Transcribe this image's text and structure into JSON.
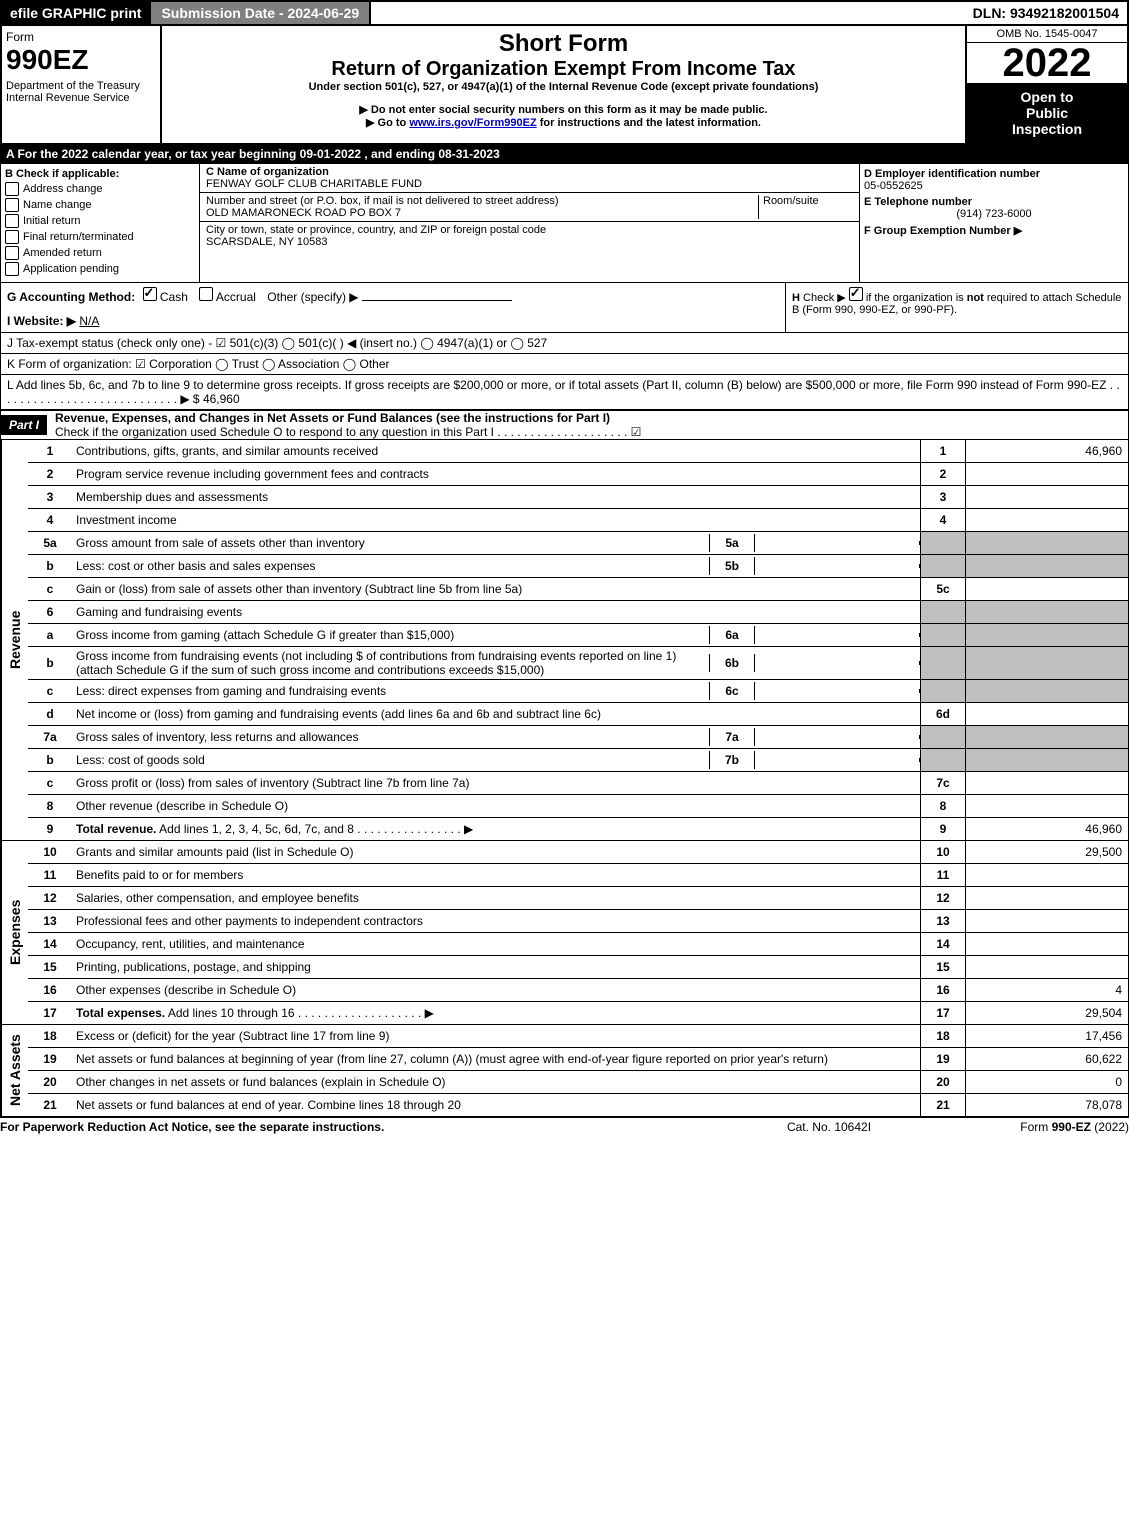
{
  "topbar": {
    "efile": "efile GRAPHIC print",
    "submission": "Submission Date - 2024-06-29",
    "dln": "DLN: 93492182001504"
  },
  "header": {
    "form_label": "Form",
    "form_num": "990EZ",
    "dept1": "Department of the Treasury",
    "dept2": "Internal Revenue Service",
    "short_form": "Short Form",
    "title": "Return of Organization Exempt From Income Tax",
    "subtitle": "Under section 501(c), 527, or 4947(a)(1) of the Internal Revenue Code (except private foundations)",
    "warn1": "▶ Do not enter social security numbers on this form as it may be made public.",
    "warn2_pre": "▶ Go to ",
    "warn2_link": "www.irs.gov/Form990EZ",
    "warn2_post": " for instructions and the latest information.",
    "omb": "OMB No. 1545-0047",
    "year": "2022",
    "open1": "Open to",
    "open2": "Public",
    "open3": "Inspection"
  },
  "sectionA": "A  For the 2022 calendar year, or tax year beginning 09-01-2022 , and ending 08-31-2023",
  "boxB": {
    "title": "B  Check if applicable:",
    "opts": [
      "Address change",
      "Name change",
      "Initial return",
      "Final return/terminated",
      "Amended return",
      "Application pending"
    ]
  },
  "boxC": {
    "c_label": "C Name of organization",
    "c_val": "FENWAY GOLF CLUB CHARITABLE FUND",
    "street_label": "Number and street (or P.O. box, if mail is not delivered to street address)",
    "room_label": "Room/suite",
    "street_val": "OLD MAMARONECK ROAD PO BOX 7",
    "city_label": "City or town, state or province, country, and ZIP or foreign postal code",
    "city_val": "SCARSDALE, NY  10583"
  },
  "boxD": {
    "d_label": "D Employer identification number",
    "d_val": "05-0552625",
    "e_label": "E Telephone number",
    "e_val": "(914) 723-6000",
    "f_label": "F Group Exemption Number  ▶"
  },
  "rowG": {
    "label": "G Accounting Method:",
    "cash": "Cash",
    "accrual": "Accrual",
    "other": "Other (specify) ▶"
  },
  "rowH": "H  Check ▶ ☐ if the organization is not required to attach Schedule B (Form 990, 990-EZ, or 990-PF).",
  "rowI": {
    "label": "I Website: ▶",
    "val": "N/A"
  },
  "rowJ": "J Tax-exempt status (check only one) - ☑ 501(c)(3)  ◯ 501(c)(  ) ◀ (insert no.)  ◯ 4947(a)(1) or  ◯ 527",
  "rowK": "K Form of organization:  ☑ Corporation  ◯ Trust  ◯ Association  ◯ Other",
  "rowL": {
    "text": "L Add lines 5b, 6c, and 7b to line 9 to determine gross receipts. If gross receipts are $200,000 or more, or if total assets (Part II, column (B) below) are $500,000 or more, file Form 990 instead of Form 990-EZ  .  .  .  .  .  .  .  .  .  .  .  .  .  .  .  .  .  .  .  .  .  .  .  .  .  .  .  .  ▶ $",
    "val": "46,960"
  },
  "part1": {
    "label": "Part I",
    "title": "Revenue, Expenses, and Changes in Net Assets or Fund Balances (see the instructions for Part I)",
    "check_line": "Check if the organization used Schedule O to respond to any question in this Part I  .  .  .  .  .  .  .  .  .  .  .  .  .  .  .  .  .  .  .  .  ☑"
  },
  "sections": {
    "revenue_label": "Revenue",
    "expenses_label": "Expenses",
    "netassets_label": "Net Assets"
  },
  "lines": [
    {
      "n": "1",
      "desc": "Contributions, gifts, grants, and similar amounts received",
      "rn": "1",
      "rv": "46,960"
    },
    {
      "n": "2",
      "desc": "Program service revenue including government fees and contracts",
      "rn": "2",
      "rv": ""
    },
    {
      "n": "3",
      "desc": "Membership dues and assessments",
      "rn": "3",
      "rv": ""
    },
    {
      "n": "4",
      "desc": "Investment income",
      "rn": "4",
      "rv": ""
    },
    {
      "n": "5a",
      "desc": "Gross amount from sale of assets other than inventory",
      "mn": "5a",
      "shaded": true
    },
    {
      "n": "b",
      "desc": "Less: cost or other basis and sales expenses",
      "mn": "5b",
      "shaded": true
    },
    {
      "n": "c",
      "desc": "Gain or (loss) from sale of assets other than inventory (Subtract line 5b from line 5a)",
      "rn": "5c",
      "rv": ""
    },
    {
      "n": "6",
      "desc": "Gaming and fundraising events",
      "shaded": true
    },
    {
      "n": "a",
      "desc": "Gross income from gaming (attach Schedule G if greater than $15,000)",
      "mn": "6a",
      "shaded": true
    },
    {
      "n": "b",
      "desc": "Gross income from fundraising events (not including $                    of contributions from fundraising events reported on line 1) (attach Schedule G if the sum of such gross income and contributions exceeds $15,000)",
      "mn": "6b",
      "shaded": true
    },
    {
      "n": "c",
      "desc": "Less: direct expenses from gaming and fundraising events",
      "mn": "6c",
      "shaded": true
    },
    {
      "n": "d",
      "desc": "Net income or (loss) from gaming and fundraising events (add lines 6a and 6b and subtract line 6c)",
      "rn": "6d",
      "rv": ""
    },
    {
      "n": "7a",
      "desc": "Gross sales of inventory, less returns and allowances",
      "mn": "7a",
      "shaded": true
    },
    {
      "n": "b",
      "desc": "Less: cost of goods sold",
      "mn": "7b",
      "shaded": true
    },
    {
      "n": "c",
      "desc": "Gross profit or (loss) from sales of inventory (Subtract line 7b from line 7a)",
      "rn": "7c",
      "rv": ""
    },
    {
      "n": "8",
      "desc": "Other revenue (describe in Schedule O)",
      "rn": "8",
      "rv": ""
    },
    {
      "n": "9",
      "desc": "Total revenue. Add lines 1, 2, 3, 4, 5c, 6d, 7c, and 8  .  .  .  .  .  .  .  .  .  .  .  .  .  .  .  .  ▶",
      "rn": "9",
      "rv": "46,960",
      "bold": true
    }
  ],
  "exp_lines": [
    {
      "n": "10",
      "desc": "Grants and similar amounts paid (list in Schedule O)",
      "rn": "10",
      "rv": "29,500"
    },
    {
      "n": "11",
      "desc": "Benefits paid to or for members",
      "rn": "11",
      "rv": ""
    },
    {
      "n": "12",
      "desc": "Salaries, other compensation, and employee benefits",
      "rn": "12",
      "rv": ""
    },
    {
      "n": "13",
      "desc": "Professional fees and other payments to independent contractors",
      "rn": "13",
      "rv": ""
    },
    {
      "n": "14",
      "desc": "Occupancy, rent, utilities, and maintenance",
      "rn": "14",
      "rv": ""
    },
    {
      "n": "15",
      "desc": "Printing, publications, postage, and shipping",
      "rn": "15",
      "rv": ""
    },
    {
      "n": "16",
      "desc": "Other expenses (describe in Schedule O)",
      "rn": "16",
      "rv": "4"
    },
    {
      "n": "17",
      "desc": "Total expenses. Add lines 10 through 16  .  .  .  .  .  .  .  .  .  .  .  .  .  .  .  .  .  .  .  ▶",
      "rn": "17",
      "rv": "29,504",
      "bold": true
    }
  ],
  "net_lines": [
    {
      "n": "18",
      "desc": "Excess or (deficit) for the year (Subtract line 17 from line 9)",
      "rn": "18",
      "rv": "17,456"
    },
    {
      "n": "19",
      "desc": "Net assets or fund balances at beginning of year (from line 27, column (A)) (must agree with end-of-year figure reported on prior year's return)",
      "rn": "19",
      "rv": "60,622"
    },
    {
      "n": "20",
      "desc": "Other changes in net assets or fund balances (explain in Schedule O)",
      "rn": "20",
      "rv": "0"
    },
    {
      "n": "21",
      "desc": "Net assets or fund balances at end of year. Combine lines 18 through 20",
      "rn": "21",
      "rv": "78,078"
    }
  ],
  "footer": {
    "left": "For Paperwork Reduction Act Notice, see the separate instructions.",
    "mid": "Cat. No. 10642I",
    "right": "Form 990-EZ (2022)"
  }
}
